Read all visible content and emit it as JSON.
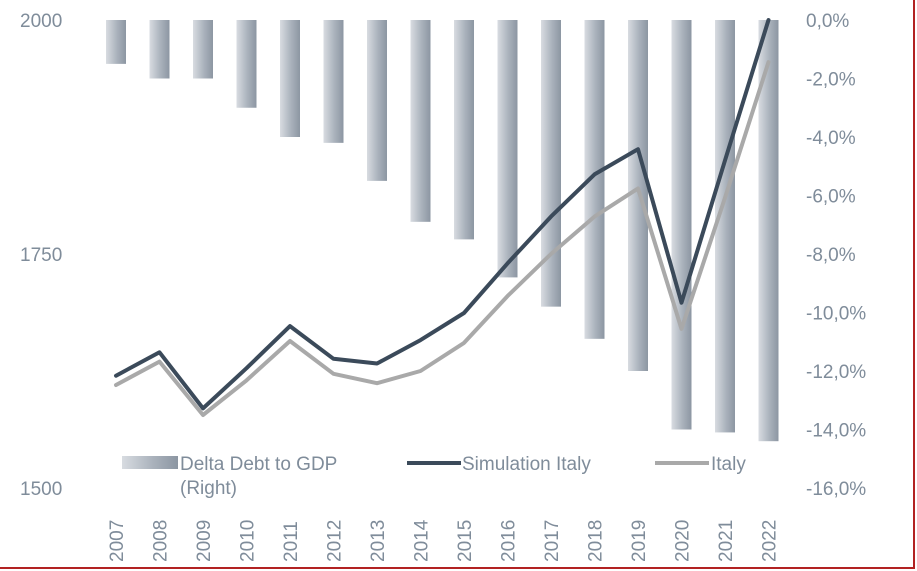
{
  "chart_data": {
    "type": "bar+line",
    "categories": [
      "2007",
      "2008",
      "2009",
      "2010",
      "2011",
      "2012",
      "2013",
      "2014",
      "2015",
      "2016",
      "2017",
      "2018",
      "2019",
      "2020",
      "2021",
      "2022"
    ],
    "left_axis": {
      "ticks": [
        "2000",
        "1750",
        "1500"
      ],
      "range": [
        1500,
        2000
      ]
    },
    "right_axis": {
      "ticks": [
        "0,0%",
        "-2,0%",
        "-4,0%",
        "-6,0%",
        "-8,0%",
        "-10,0%",
        "-12,0%",
        "-14,0%",
        "-16,0%"
      ],
      "range": [
        -16,
        0
      ]
    },
    "series": [
      {
        "name": "Delta Debt to GDP (Right)",
        "kind": "bar",
        "axis": "right",
        "color": "#9aa3ae",
        "values": [
          -1.5,
          -2.0,
          -2.0,
          -3.0,
          -4.0,
          -4.2,
          -5.5,
          -6.9,
          -7.5,
          -8.8,
          -9.8,
          -10.9,
          -12.0,
          -14.0,
          -14.1,
          -14.4
        ]
      },
      {
        "name": "Simulation Italy",
        "kind": "line",
        "axis": "left",
        "color": "#3b4a5a",
        "values": [
          1620,
          1645,
          1585,
          1628,
          1673,
          1638,
          1633,
          1658,
          1687,
          1740,
          1790,
          1835,
          1862,
          1698,
          1850,
          2000
        ]
      },
      {
        "name": "Italy",
        "kind": "line",
        "axis": "left",
        "color": "#a9a9a9",
        "values": [
          1610,
          1635,
          1578,
          1615,
          1657,
          1622,
          1612,
          1625,
          1655,
          1705,
          1750,
          1790,
          1820,
          1670,
          1810,
          1955
        ]
      }
    ],
    "legend": [
      {
        "label_lines": [
          "Delta Debt to GDP",
          "(Right)"
        ]
      },
      {
        "label_lines": [
          "Simulation Italy"
        ]
      },
      {
        "label_lines": [
          "Italy"
        ]
      }
    ]
  }
}
